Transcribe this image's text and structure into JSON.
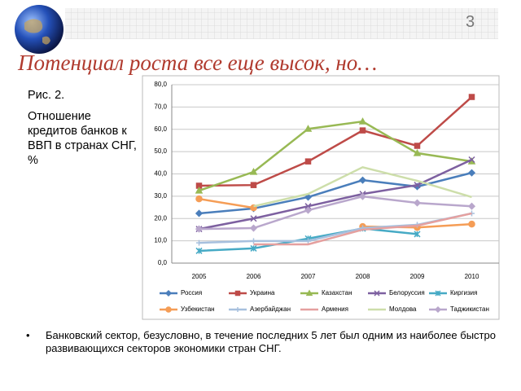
{
  "slide": {
    "number": "3",
    "title": "Потенциал роста все еще высок, но…",
    "figure_label": "Рис. 2.",
    "caption": "Отношение кредитов банков к ВВП в странах СНГ, %",
    "bullet": "Банковский сектор, безусловно, в течение последних  5 лет был одним из наиболее быстро развивающихся секторов экономики стран СНГ."
  },
  "chart_data": {
    "type": "line",
    "categories": [
      "2005",
      "2006",
      "2007",
      "2008",
      "2009",
      "2010"
    ],
    "ylim": [
      0,
      80
    ],
    "yticks": [
      {
        "value": 0,
        "label": "0,0"
      },
      {
        "value": 10,
        "label": "10,0"
      },
      {
        "value": 20,
        "label": "20,0"
      },
      {
        "value": 30,
        "label": "30,0"
      },
      {
        "value": 40,
        "label": "40,0"
      },
      {
        "value": 50,
        "label": "50,0"
      },
      {
        "value": 60,
        "label": "60,0"
      },
      {
        "value": 70,
        "label": "70,0"
      },
      {
        "value": 80,
        "label": "80,0"
      }
    ],
    "grid": true,
    "legend": "bottom",
    "series": [
      {
        "name": "Россия",
        "color": "#4a7ebb",
        "marker": "diamond",
        "values": [
          22.3,
          24.5,
          29.6,
          37.2,
          34.3,
          40.5
        ]
      },
      {
        "name": "Украина",
        "color": "#be4b48",
        "marker": "square",
        "values": [
          34.7,
          35,
          45.6,
          59.5,
          52.6,
          74.5
        ]
      },
      {
        "name": "Казахстан",
        "color": "#98b954",
        "marker": "triangle",
        "values": [
          32.5,
          40.9,
          60.2,
          63.5,
          49.3,
          45.6
        ]
      },
      {
        "name": "Белоруссия",
        "color": "#7d60a0",
        "marker": "x",
        "values": [
          15.3,
          20,
          25.5,
          31,
          35,
          46.4
        ]
      },
      {
        "name": "Киргизия",
        "color": "#46aac5",
        "marker": "star",
        "values": [
          5.5,
          6.6,
          11,
          15.5,
          13,
          null
        ]
      },
      {
        "name": "Узбекистан",
        "color": "#f59d56",
        "marker": "circle",
        "values": [
          28.8,
          24.8,
          null,
          16.4,
          16,
          17.5
        ]
      },
      {
        "name": "Азербайджан",
        "color": "#a7c0de",
        "marker": "plus",
        "values": [
          9.1,
          9.9,
          9.9,
          15.7,
          17.2,
          22.3
        ]
      },
      {
        "name": "Армения",
        "color": "#e5a09f",
        "marker": "none",
        "values": [
          null,
          8.4,
          8.4,
          15,
          16.8,
          22.3
        ]
      },
      {
        "name": "Молдова",
        "color": "#cddeaa",
        "marker": "none",
        "values": [
          null,
          25.5,
          31,
          43,
          36.9,
          29.6
        ]
      },
      {
        "name": "Таджикистан",
        "color": "#b9a7cc",
        "marker": "diamond",
        "values": [
          15.3,
          15.7,
          23.7,
          29.9,
          27,
          25.5
        ]
      }
    ]
  }
}
